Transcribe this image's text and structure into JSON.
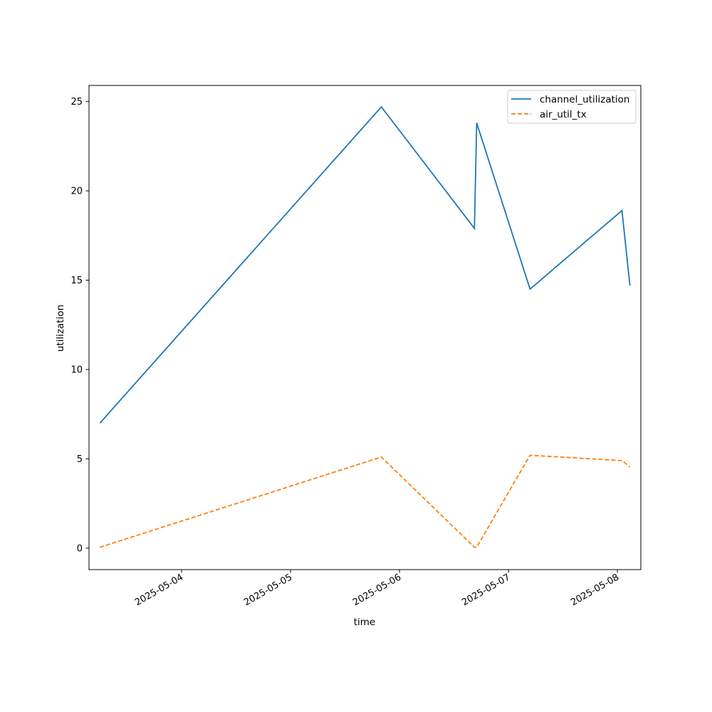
{
  "chart_data": {
    "type": "line",
    "title": "",
    "xlabel": "time",
    "ylabel": "utilization",
    "x_type": "datetime",
    "x": [
      "2025-05-03 06:00",
      "2025-05-05 20:00",
      "2025-05-06 16:30",
      "2025-05-06 17:00",
      "2025-05-07 04:45",
      "2025-05-08 01:00",
      "2025-05-08 02:45"
    ],
    "series": [
      {
        "name": "channel_utilization",
        "color": "#1f77b4",
        "linestyle": "solid",
        "values": [
          7.0,
          24.7,
          17.9,
          23.8,
          14.5,
          18.9,
          14.7
        ]
      },
      {
        "name": "air_util_tx",
        "color": "#ff7f0e",
        "linestyle": "dashed",
        "values": [
          0.05,
          5.1,
          0.05,
          0.05,
          5.2,
          4.9,
          4.55
        ]
      }
    ],
    "xlim": [
      "2025-05-03 03:36",
      "2025-05-08 05:09"
    ],
    "ylim": [
      -1.2,
      25.9
    ],
    "xticks": [
      "2025-05-04",
      "2025-05-05",
      "2025-05-06",
      "2025-05-07",
      "2025-05-08"
    ],
    "yticks": [
      0,
      5,
      10,
      15,
      20,
      25
    ],
    "grid": false,
    "legend_position": "upper right"
  }
}
